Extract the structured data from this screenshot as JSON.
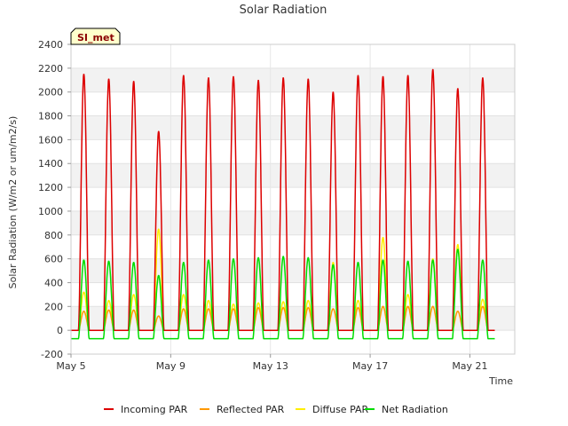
{
  "chart_data": {
    "type": "line",
    "title": "Solar Radiation",
    "xlabel": "Time",
    "ylabel": "Solar Radiation (W/m2 or um/m2/s)",
    "site_badge": "SI_met",
    "xlim": [
      5,
      22.8
    ],
    "ylim": [
      -200,
      2400
    ],
    "yticks": [
      -200,
      0,
      200,
      400,
      600,
      800,
      1000,
      1200,
      1400,
      1600,
      1800,
      2000,
      2200,
      2400
    ],
    "xticks": [
      {
        "value": 5,
        "label": "May 5"
      },
      {
        "value": 9,
        "label": "May 9"
      },
      {
        "value": 13,
        "label": "May 13"
      },
      {
        "value": 17,
        "label": "May 17"
      },
      {
        "value": 21,
        "label": "May 21"
      }
    ],
    "days": [
      5,
      6,
      7,
      8,
      9,
      10,
      11,
      12,
      13,
      14,
      15,
      16,
      17,
      18,
      19,
      20,
      21
    ],
    "series": [
      {
        "name": "Incoming PAR",
        "color": "#dd0000",
        "daily_peak": [
          2150,
          2110,
          2090,
          1670,
          2140,
          2120,
          2130,
          2100,
          2120,
          2110,
          2000,
          2140,
          2130,
          2140,
          2190,
          2030,
          2120
        ],
        "night": 0
      },
      {
        "name": "Reflected PAR",
        "color": "#ff9900",
        "daily_peak": [
          160,
          170,
          170,
          120,
          180,
          180,
          180,
          190,
          190,
          190,
          180,
          190,
          200,
          200,
          200,
          160,
          200
        ],
        "night": 0
      },
      {
        "name": "Diffuse PAR",
        "color": "#ffee00",
        "daily_peak": [
          320,
          250,
          300,
          850,
          300,
          250,
          220,
          230,
          240,
          250,
          570,
          250,
          780,
          300,
          600,
          720,
          260
        ],
        "night": 0
      },
      {
        "name": "Net Radiation",
        "color": "#00dd00",
        "daily_peak": [
          590,
          580,
          570,
          460,
          570,
          590,
          600,
          610,
          620,
          610,
          550,
          570,
          590,
          580,
          590,
          680,
          590
        ],
        "night": -70
      }
    ]
  }
}
